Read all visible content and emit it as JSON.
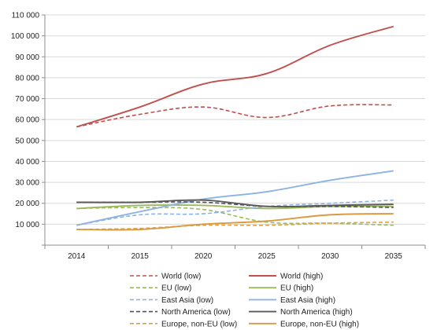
{
  "chart_data": {
    "type": "line",
    "title": "",
    "xlabel": "",
    "ylabel": "",
    "categories": [
      "2014",
      "2015",
      "2020",
      "2025",
      "2030",
      "2035"
    ],
    "ylim": [
      0,
      110000
    ],
    "yticks": [
      0,
      10000,
      20000,
      30000,
      40000,
      50000,
      60000,
      70000,
      80000,
      90000,
      100000,
      110000
    ],
    "ytick_labels": [
      "",
      "10 000",
      "20 000",
      "30 000",
      "40 000",
      "50 000",
      "60 000",
      "70 000",
      "80 000",
      "90 000",
      "100 000",
      "110 000"
    ],
    "grid": true,
    "legend_position": "bottom",
    "series": [
      {
        "name": "World (low)",
        "style": "dashed",
        "color": "#c0504d",
        "values": [
          56500,
          62500,
          66000,
          61000,
          66500,
          67000
        ]
      },
      {
        "name": "World (high)",
        "style": "solid",
        "color": "#c0504d",
        "values": [
          56500,
          66000,
          77000,
          82000,
          95500,
          104500
        ]
      },
      {
        "name": "EU (low)",
        "style": "dashed",
        "color": "#9bbb59",
        "values": [
          17500,
          18000,
          17000,
          11000,
          10500,
          9500
        ]
      },
      {
        "name": "EU (high)",
        "style": "solid",
        "color": "#9bbb59",
        "values": [
          17500,
          19000,
          19000,
          17500,
          18500,
          18500
        ]
      },
      {
        "name": "East Asia (low)",
        "style": "dashed",
        "color": "#8db3e2",
        "values": [
          9500,
          14500,
          15000,
          18500,
          20000,
          21500
        ]
      },
      {
        "name": "East Asia (high)",
        "style": "solid",
        "color": "#8db3e2",
        "values": [
          9500,
          16000,
          22000,
          25500,
          31000,
          35500
        ]
      },
      {
        "name": "North America (low)",
        "style": "dashed",
        "color": "#4f4f5f",
        "values": [
          20500,
          20500,
          20500,
          18500,
          18500,
          18000
        ]
      },
      {
        "name": "North America (high)",
        "style": "solid",
        "color": "#595959",
        "values": [
          20500,
          20500,
          21500,
          18500,
          19000,
          19500
        ]
      },
      {
        "name": "Europe, non-EU (low)",
        "style": "dashed",
        "color": "#e0a040",
        "values": [
          7500,
          8000,
          9500,
          9500,
          10500,
          11000
        ]
      },
      {
        "name": "Europe, non-EU (high)",
        "style": "solid",
        "color": "#d99a40",
        "values": [
          7500,
          7500,
          10000,
          11500,
          14500,
          15000
        ]
      }
    ]
  }
}
